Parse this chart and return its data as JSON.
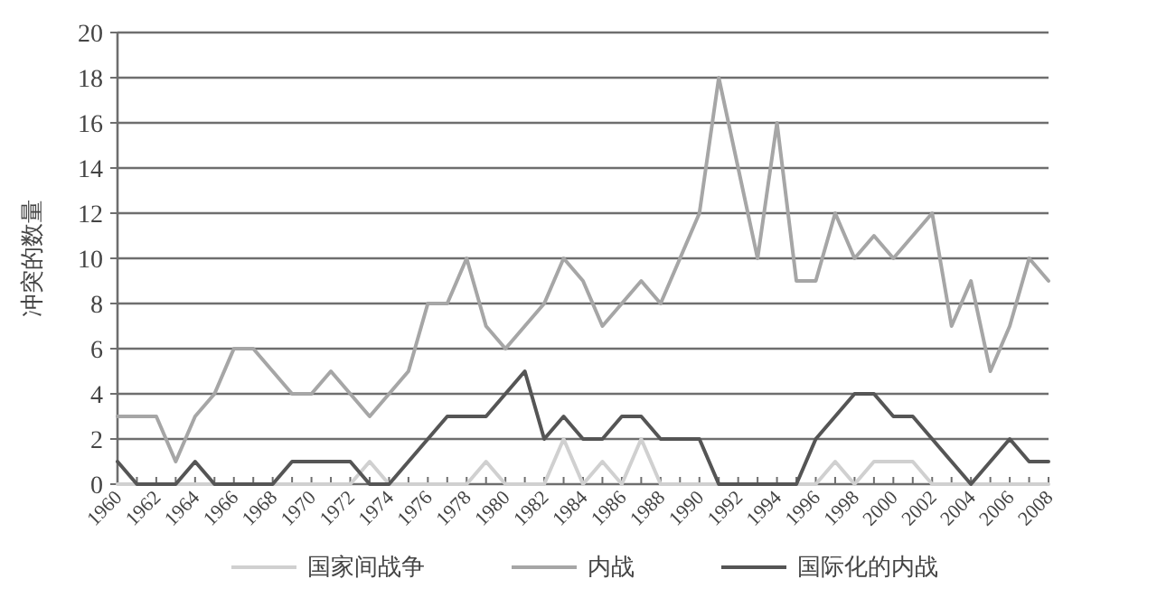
{
  "chart_data": {
    "type": "line",
    "ylabel": "冲突的数量",
    "x": [
      1960,
      1961,
      1962,
      1963,
      1964,
      1965,
      1966,
      1967,
      1968,
      1969,
      1970,
      1971,
      1972,
      1973,
      1974,
      1975,
      1976,
      1977,
      1978,
      1979,
      1980,
      1981,
      1982,
      1983,
      1984,
      1985,
      1986,
      1987,
      1988,
      1989,
      1990,
      1991,
      1992,
      1993,
      1994,
      1995,
      1996,
      1997,
      1998,
      1999,
      2000,
      2001,
      2002,
      2003,
      2004,
      2005,
      2006,
      2007,
      2008
    ],
    "series": [
      {
        "name": "国家间战争",
        "color": "#d0d0d0",
        "values": [
          0,
          0,
          0,
          0,
          0,
          0,
          0,
          0,
          0,
          0,
          0,
          0,
          0,
          1,
          0,
          0,
          0,
          0,
          0,
          1,
          0,
          0,
          0,
          2,
          0,
          1,
          0,
          2,
          0,
          0,
          0,
          0,
          0,
          0,
          0,
          0,
          0,
          1,
          0,
          1,
          1,
          1,
          0,
          0,
          0,
          0,
          0,
          0,
          0
        ]
      },
      {
        "name": "内战",
        "color": "#a6a6a6",
        "values": [
          3,
          3,
          3,
          1,
          3,
          4,
          6,
          6,
          5,
          4,
          4,
          5,
          4,
          3,
          4,
          5,
          8,
          8,
          10,
          7,
          6,
          7,
          8,
          10,
          9,
          7,
          8,
          9,
          8,
          10,
          12,
          18,
          14,
          10,
          16,
          9,
          9,
          12,
          10,
          11,
          10,
          11,
          12,
          7,
          9,
          5,
          7,
          10,
          9
        ]
      },
      {
        "name": "国际化的内战",
        "color": "#555555",
        "values": [
          1,
          0,
          0,
          0,
          1,
          0,
          0,
          0,
          0,
          1,
          1,
          1,
          1,
          0,
          0,
          1,
          2,
          3,
          3,
          3,
          4,
          5,
          2,
          3,
          2,
          2,
          3,
          3,
          2,
          2,
          2,
          0,
          0,
          0,
          0,
          0,
          2,
          3,
          4,
          4,
          3,
          3,
          2,
          1,
          0,
          1,
          2,
          1,
          1
        ]
      }
    ],
    "xlim": [
      1960,
      2008
    ],
    "xticks": [
      1960,
      {
        "value": 1961,
        "label": null
      },
      1962,
      {
        "value": 1963,
        "label": null
      },
      1964,
      {
        "value": 1965,
        "label": null
      },
      1966,
      {
        "value": 1967,
        "label": null
      },
      1968,
      {
        "value": 1969,
        "label": null
      },
      1970,
      {
        "value": 1971,
        "label": null
      },
      1972,
      {
        "value": 1973,
        "label": null
      },
      1974,
      {
        "value": 1975,
        "label": null
      },
      1976,
      {
        "value": 1977,
        "label": null
      },
      1978,
      {
        "value": 1979,
        "label": null
      },
      1980,
      {
        "value": 1981,
        "label": null
      },
      1982,
      {
        "value": 1983,
        "label": null
      },
      1984,
      {
        "value": 1985,
        "label": null
      },
      1986,
      {
        "value": 1987,
        "label": null
      },
      1988,
      {
        "value": 1989,
        "label": null
      },
      1990,
      {
        "value": 1991,
        "label": null
      },
      1992,
      {
        "value": 1993,
        "label": null
      },
      1994,
      {
        "value": 1995,
        "label": null
      },
      1996,
      {
        "value": 1997,
        "label": null
      },
      1998,
      {
        "value": 1999,
        "label": null
      },
      2000,
      {
        "value": 2001,
        "label": null
      },
      2002,
      {
        "value": 2003,
        "label": null
      },
      2004,
      {
        "value": 2005,
        "label": null
      },
      2006,
      {
        "value": 2007,
        "label": null
      },
      2008
    ],
    "ylim": [
      0,
      20
    ],
    "yticks": [
      0,
      2,
      4,
      6,
      8,
      10,
      12,
      14,
      16,
      18,
      20
    ],
    "grid": "y",
    "legend": "bottom"
  }
}
